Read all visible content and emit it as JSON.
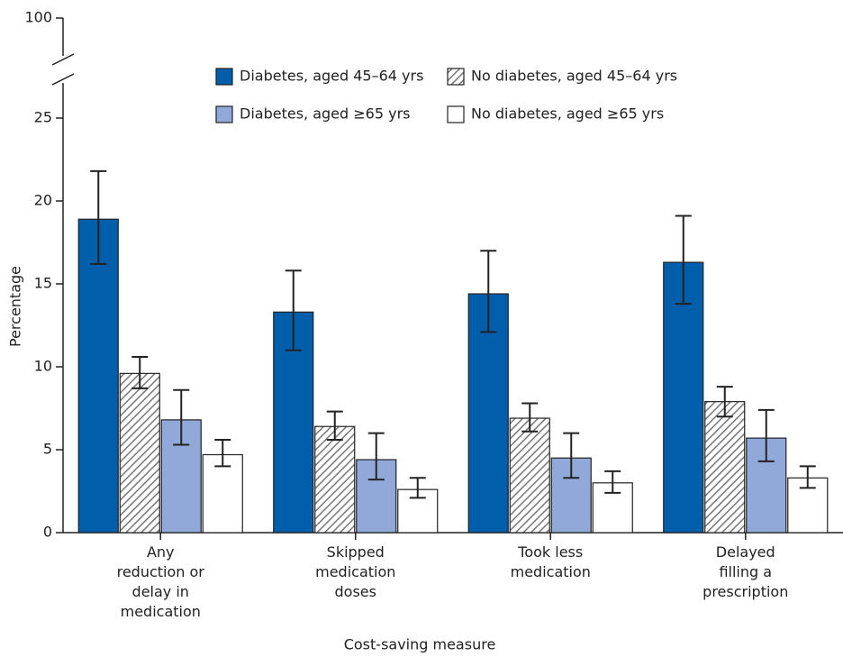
{
  "chart_data": {
    "type": "bar",
    "x_label": "Cost-saving measure",
    "y_label": "Percentage",
    "categories": [
      [
        "Any",
        "reduction or",
        "delay in",
        "medication"
      ],
      [
        "Skipped",
        "medication",
        "doses"
      ],
      [
        "Took less",
        "medication"
      ],
      [
        "Delayed",
        "filling a",
        "prescription"
      ]
    ],
    "series": [
      {
        "name": "Diabetes, aged 45–64 yrs",
        "color": "#005eaa",
        "pattern": "solid",
        "values": [
          18.9,
          13.3,
          14.4,
          16.3
        ],
        "error_low": [
          16.2,
          11.0,
          12.1,
          13.8
        ],
        "error_high": [
          21.8,
          15.8,
          17.0,
          19.1
        ]
      },
      {
        "name": "No diabetes, aged 45–64 yrs",
        "color": "#777777",
        "pattern": "hatch",
        "values": [
          9.6,
          6.4,
          6.9,
          7.9
        ],
        "error_low": [
          8.7,
          5.6,
          6.1,
          7.0
        ],
        "error_high": [
          10.6,
          7.3,
          7.8,
          8.8
        ]
      },
      {
        "name": "Diabetes, aged ≥65 yrs",
        "color": "#91a9d8",
        "pattern": "solid",
        "values": [
          6.8,
          4.4,
          4.5,
          5.7
        ],
        "error_low": [
          5.3,
          3.2,
          3.3,
          4.3
        ],
        "error_high": [
          8.6,
          6.0,
          6.0,
          7.4
        ]
      },
      {
        "name": "No diabetes, aged ≥65 yrs",
        "color": "#ffffff",
        "pattern": "solid",
        "values": [
          4.7,
          2.6,
          3.0,
          3.3
        ],
        "error_low": [
          4.0,
          2.1,
          2.4,
          2.7
        ],
        "error_high": [
          5.6,
          3.3,
          3.7,
          4.0
        ]
      }
    ],
    "ylim": [
      0,
      100
    ],
    "yticks": [
      0,
      5,
      10,
      15,
      20,
      25,
      100
    ],
    "axis_break": true,
    "legend": "top"
  }
}
